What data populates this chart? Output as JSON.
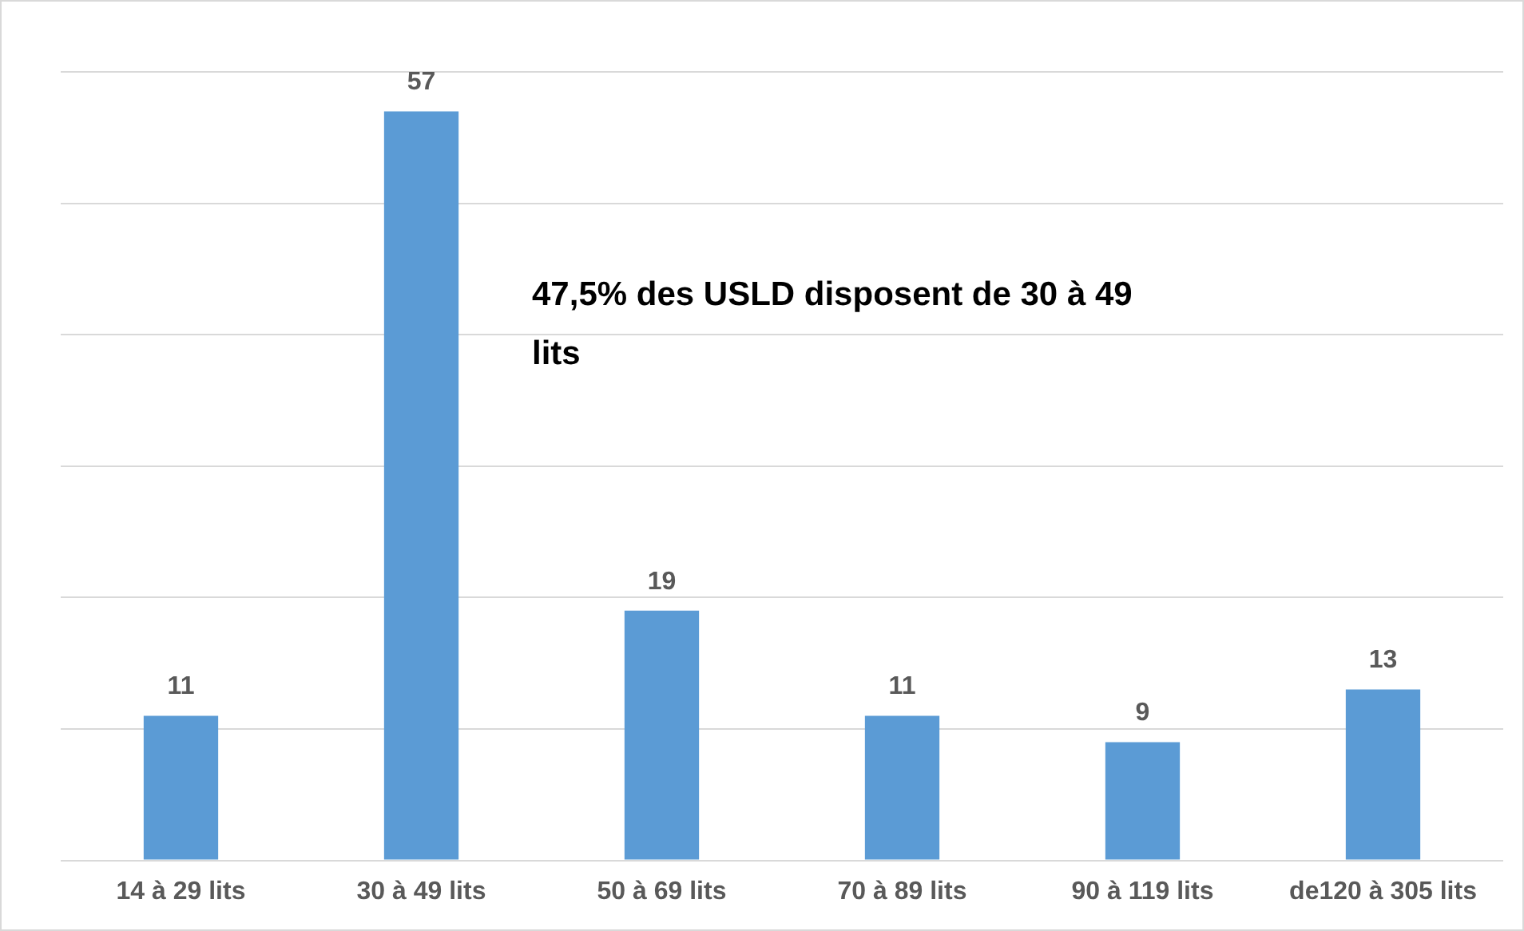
{
  "chart_data": {
    "type": "bar",
    "categories": [
      "14 à 29 lits",
      "30 à 49 lits",
      "50 à 69 lits",
      "70 à 89 lits",
      "90 à 119 lits",
      "de120 à 305 lits"
    ],
    "values": [
      11,
      57,
      19,
      11,
      9,
      13
    ],
    "color": "#5b9bd5",
    "data_labels": true,
    "ylim": [
      0,
      60
    ],
    "yticks": [
      {
        "value": 0,
        "label": null
      },
      {
        "value": 10,
        "label": null
      },
      {
        "value": 20,
        "label": null
      },
      {
        "value": 30,
        "label": null
      },
      {
        "value": 40,
        "label": null
      },
      {
        "value": 50,
        "label": null
      },
      {
        "value": 60,
        "label": null
      }
    ],
    "grid": "y",
    "tick_labels": "x",
    "legend": false,
    "annotations": [
      "47,5% des USLD disposent de 30 à 49 lits"
    ]
  }
}
